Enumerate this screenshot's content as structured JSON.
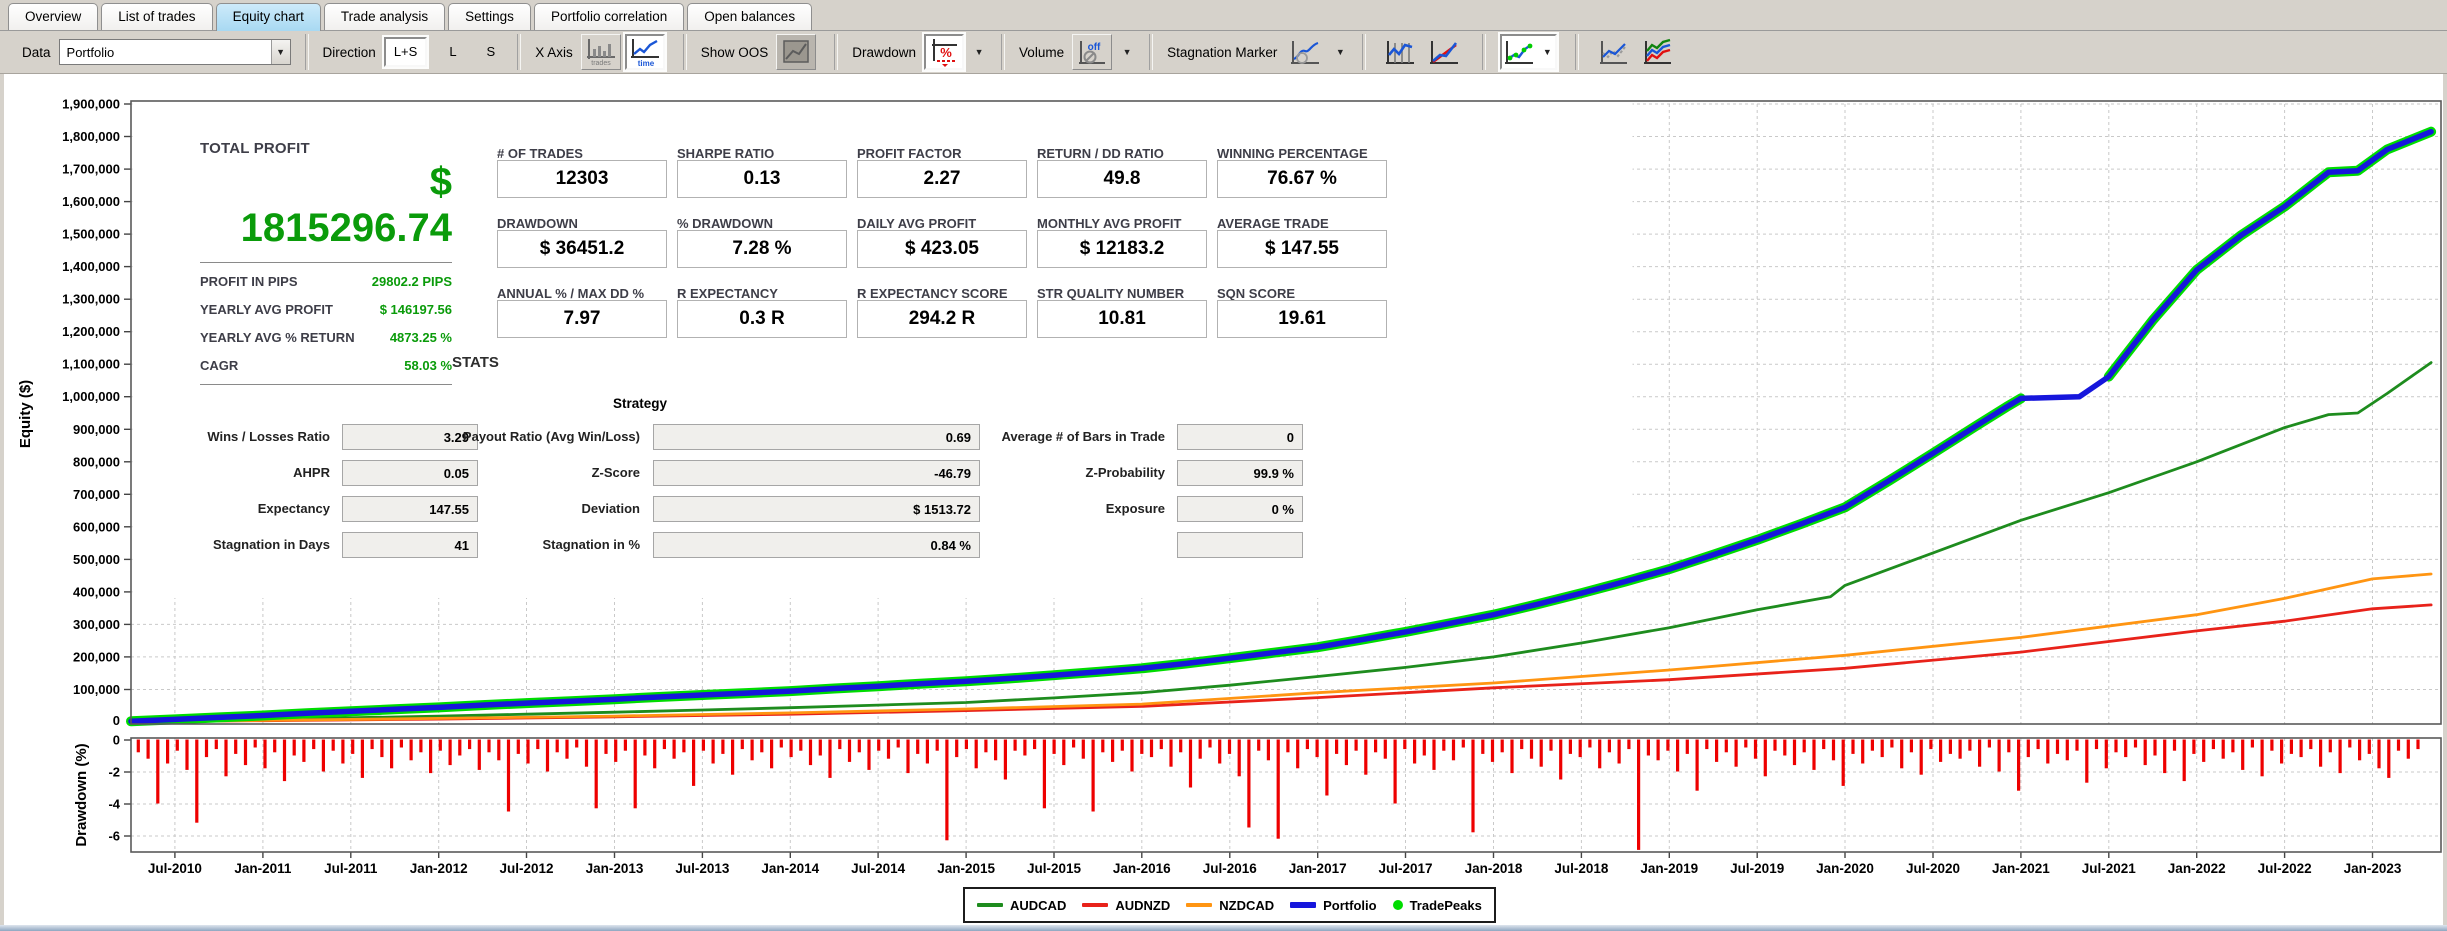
{
  "tabs": {
    "items": [
      "Overview",
      "List of trades",
      "Equity chart",
      "Trade analysis",
      "Settings",
      "Portfolio correlation",
      "Open balances"
    ],
    "active": "Equity chart"
  },
  "toolbar": {
    "data_label": "Data",
    "data_value": "Portfolio",
    "direction_label": "Direction",
    "direction_options": [
      "L+S",
      "L",
      "S"
    ],
    "direction_selected": "L+S",
    "xaxis_label": "X Axis",
    "xaxis_trades_caption": "trades",
    "xaxis_time_caption": "time",
    "show_oos_label": "Show OOS",
    "drawdown_label": "Drawdown",
    "drawdown_icon_glyph": "%",
    "volume_label": "Volume",
    "volume_state": "off",
    "stagnation_label": "Stagnation Marker",
    "caret": "▼"
  },
  "summary": {
    "title": "TOTAL PROFIT",
    "currency": "$",
    "value": "1815296.74",
    "rows": [
      {
        "label": "PROFIT IN PIPS",
        "value": "29802.2 PIPS"
      },
      {
        "label": "YEARLY AVG PROFIT",
        "value": "$ 146197.56"
      },
      {
        "label": "YEARLY AVG % RETURN",
        "value": "4873.25 %"
      },
      {
        "label": "CAGR",
        "value": "58.03 %"
      }
    ]
  },
  "stat_boxes": [
    [
      {
        "label": "# OF TRADES",
        "value": "12303"
      },
      {
        "label": "SHARPE RATIO",
        "value": "0.13"
      },
      {
        "label": "PROFIT FACTOR",
        "value": "2.27"
      },
      {
        "label": "RETURN / DD RATIO",
        "value": "49.8"
      },
      {
        "label": "WINNING PERCENTAGE",
        "value": "76.67 %"
      }
    ],
    [
      {
        "label": "DRAWDOWN",
        "value": "$ 36451.2"
      },
      {
        "label": "% DRAWDOWN",
        "value": "7.28 %"
      },
      {
        "label": "DAILY AVG PROFIT",
        "value": "$ 423.05"
      },
      {
        "label": "MONTHLY AVG PROFIT",
        "value": "$ 12183.2"
      },
      {
        "label": "AVERAGE TRADE",
        "value": "$ 147.55"
      }
    ],
    [
      {
        "label": "ANNUAL % / MAX DD %",
        "value": "7.97"
      },
      {
        "label": "R EXPECTANCY",
        "value": "0.3 R"
      },
      {
        "label": "R EXPECTANCY SCORE",
        "value": "294.2 R"
      },
      {
        "label": "STR QUALITY NUMBER",
        "value": "10.81"
      },
      {
        "label": "SQN SCORE",
        "value": "19.61"
      }
    ]
  ],
  "stats_heading": "STATS",
  "strategy": {
    "title": "Strategy",
    "cols": [
      {
        "rows": [
          {
            "label": "Wins / Losses Ratio",
            "value": "3.29"
          },
          {
            "label": "AHPR",
            "value": "0.05"
          },
          {
            "label": "Expectancy",
            "value": "147.55"
          },
          {
            "label": "Stagnation in Days",
            "value": "41"
          }
        ]
      },
      {
        "rows": [
          {
            "label": "Payout Ratio (Avg Win/Loss)",
            "value": "0.69"
          },
          {
            "label": "Z-Score",
            "value": "-46.79"
          },
          {
            "label": "Deviation",
            "value": "$ 1513.72"
          },
          {
            "label": "Stagnation in %",
            "value": "0.84 %"
          }
        ]
      },
      {
        "rows": [
          {
            "label": "Average # of Bars in Trade",
            "value": "0"
          },
          {
            "label": "Z-Probability",
            "value": "99.9 %"
          },
          {
            "label": "Exposure",
            "value": "0 %"
          },
          {
            "label": "",
            "value": ""
          }
        ]
      }
    ]
  },
  "legend": {
    "items": [
      {
        "label": "AUDCAD",
        "color": "#1e8c1e",
        "swatch": "line"
      },
      {
        "label": "AUDNZD",
        "color": "#e8221a",
        "swatch": "line"
      },
      {
        "label": "NZDCAD",
        "color": "#ff9512",
        "swatch": "line"
      },
      {
        "label": "Portfolio",
        "color": "#1616dc",
        "swatch": "line-thick"
      },
      {
        "label": "TradePeaks",
        "color": "#00dc00",
        "swatch": "dot"
      }
    ]
  },
  "chart_data": {
    "type": "line",
    "x_unit": "months since Apr-2010",
    "equity_axis": {
      "label": "Equity ($)",
      "min": 0,
      "max": 1900000,
      "step": 100000
    },
    "drawdown_axis": {
      "label": "Drawdown (%)",
      "ticks": [
        0,
        -2,
        -4,
        -6
      ]
    },
    "x_ticks": [
      {
        "t": 3,
        "label": "Jul-2010"
      },
      {
        "t": 9,
        "label": "Jan-2011"
      },
      {
        "t": 15,
        "label": "Jul-2011"
      },
      {
        "t": 21,
        "label": "Jan-2012"
      },
      {
        "t": 27,
        "label": "Jul-2012"
      },
      {
        "t": 33,
        "label": "Jan-2013"
      },
      {
        "t": 39,
        "label": "Jul-2013"
      },
      {
        "t": 45,
        "label": "Jan-2014"
      },
      {
        "t": 51,
        "label": "Jul-2014"
      },
      {
        "t": 57,
        "label": "Jan-2015"
      },
      {
        "t": 63,
        "label": "Jul-2015"
      },
      {
        "t": 69,
        "label": "Jan-2016"
      },
      {
        "t": 75,
        "label": "Jul-2016"
      },
      {
        "t": 81,
        "label": "Jan-2017"
      },
      {
        "t": 87,
        "label": "Jul-2017"
      },
      {
        "t": 93,
        "label": "Jan-2018"
      },
      {
        "t": 99,
        "label": "Jul-2018"
      },
      {
        "t": 105,
        "label": "Jan-2019"
      },
      {
        "t": 111,
        "label": "Jul-2019"
      },
      {
        "t": 117,
        "label": "Jan-2020"
      },
      {
        "t": 123,
        "label": "Jul-2020"
      },
      {
        "t": 129,
        "label": "Jan-2021"
      },
      {
        "t": 135,
        "label": "Jul-2021"
      },
      {
        "t": 141,
        "label": "Jan-2022"
      },
      {
        "t": 147,
        "label": "Jul-2022"
      },
      {
        "t": 153,
        "label": "Jan-2023"
      }
    ],
    "series": [
      {
        "name": "AUDCAD",
        "color": "#1e8c1e",
        "points": [
          [
            0,
            1
          ],
          [
            6,
            5
          ],
          [
            9,
            8
          ],
          [
            15,
            13
          ],
          [
            21,
            18
          ],
          [
            27,
            24
          ],
          [
            33,
            30
          ],
          [
            39,
            37
          ],
          [
            45,
            44
          ],
          [
            51,
            52
          ],
          [
            57,
            60
          ],
          [
            63,
            74
          ],
          [
            69,
            90
          ],
          [
            75,
            113
          ],
          [
            81,
            140
          ],
          [
            87,
            168
          ],
          [
            93,
            200
          ],
          [
            99,
            243
          ],
          [
            105,
            290
          ],
          [
            111,
            345
          ],
          [
            116,
            385
          ],
          [
            117,
            420
          ],
          [
            123,
            520
          ],
          [
            129,
            620
          ],
          [
            135,
            705
          ],
          [
            141,
            800
          ],
          [
            147,
            905
          ],
          [
            150,
            945
          ],
          [
            152,
            950
          ],
          [
            154,
            1010
          ],
          [
            157,
            1105
          ]
        ]
      },
      {
        "name": "AUDNZD",
        "color": "#e8221a",
        "points": [
          [
            0,
            1
          ],
          [
            9,
            4
          ],
          [
            21,
            9
          ],
          [
            33,
            16
          ],
          [
            45,
            24
          ],
          [
            57,
            35
          ],
          [
            69,
            48
          ],
          [
            81,
            75
          ],
          [
            93,
            105
          ],
          [
            105,
            130
          ],
          [
            117,
            165
          ],
          [
            129,
            215
          ],
          [
            141,
            280
          ],
          [
            147,
            310
          ],
          [
            153,
            348
          ],
          [
            157,
            360
          ]
        ]
      },
      {
        "name": "NZDCAD",
        "color": "#ff9512",
        "points": [
          [
            0,
            1
          ],
          [
            9,
            5
          ],
          [
            21,
            11
          ],
          [
            33,
            18
          ],
          [
            45,
            28
          ],
          [
            57,
            40
          ],
          [
            69,
            55
          ],
          [
            81,
            90
          ],
          [
            93,
            120
          ],
          [
            105,
            160
          ],
          [
            117,
            205
          ],
          [
            129,
            260
          ],
          [
            141,
            330
          ],
          [
            147,
            380
          ],
          [
            153,
            440
          ],
          [
            157,
            455
          ]
        ]
      },
      {
        "name": "Portfolio",
        "color": "#1616dc",
        "halo": "#00dc00",
        "halo_gaps": [
          [
            129,
            134
          ],
          [
            150,
            152
          ]
        ],
        "points": [
          [
            0,
            2
          ],
          [
            3,
            8
          ],
          [
            6,
            14
          ],
          [
            9,
            20
          ],
          [
            12,
            27
          ],
          [
            15,
            33
          ],
          [
            18,
            39
          ],
          [
            21,
            45
          ],
          [
            24,
            52
          ],
          [
            27,
            58
          ],
          [
            30,
            64
          ],
          [
            33,
            70
          ],
          [
            36,
            77
          ],
          [
            39,
            83
          ],
          [
            42,
            89
          ],
          [
            45,
            95
          ],
          [
            48,
            103
          ],
          [
            51,
            110
          ],
          [
            54,
            118
          ],
          [
            57,
            125
          ],
          [
            60,
            134
          ],
          [
            63,
            144
          ],
          [
            66,
            154
          ],
          [
            69,
            165
          ],
          [
            72,
            180
          ],
          [
            75,
            196
          ],
          [
            78,
            213
          ],
          [
            81,
            230
          ],
          [
            84,
            253
          ],
          [
            87,
            277
          ],
          [
            90,
            303
          ],
          [
            93,
            330
          ],
          [
            96,
            362
          ],
          [
            99,
            396
          ],
          [
            102,
            432
          ],
          [
            105,
            470
          ],
          [
            108,
            514
          ],
          [
            111,
            560
          ],
          [
            114,
            609
          ],
          [
            117,
            660
          ],
          [
            120,
            742
          ],
          [
            123,
            826
          ],
          [
            126,
            912
          ],
          [
            128,
            968
          ],
          [
            129,
            995
          ],
          [
            133,
            1000
          ],
          [
            135,
            1062
          ],
          [
            138,
            1235
          ],
          [
            141,
            1390
          ],
          [
            144,
            1495
          ],
          [
            147,
            1585
          ],
          [
            149,
            1655
          ],
          [
            150,
            1690
          ],
          [
            152,
            1695
          ],
          [
            154,
            1760
          ],
          [
            157,
            1815
          ]
        ]
      }
    ],
    "trade_peaks": {
      "name": "TradePeaks",
      "color": "#00dc00"
    },
    "drawdown_bars": {
      "color": "#ee0000",
      "t_start": 0.5,
      "t_step": 0.665,
      "depths": [
        0.8,
        1.2,
        4.0,
        1.5,
        0.7,
        1.9,
        5.2,
        1.1,
        0.6,
        2.3,
        0.9,
        1.6,
        0.5,
        1.8,
        0.8,
        2.6,
        1.0,
        1.4,
        0.6,
        2.0,
        0.7,
        1.5,
        0.9,
        2.4,
        0.6,
        1.1,
        1.8,
        0.5,
        1.3,
        0.8,
        2.1,
        0.7,
        1.6,
        1.0,
        0.6,
        1.9,
        0.8,
        1.3,
        4.5,
        0.9,
        1.5,
        0.6,
        2.0,
        0.8,
        1.2,
        0.5,
        1.7,
        4.3,
        0.9,
        1.4,
        0.7,
        4.3,
        1.0,
        1.8,
        0.6,
        1.2,
        0.8,
        2.9,
        0.7,
        1.5,
        0.9,
        2.2,
        0.6,
        1.3,
        0.8,
        1.8,
        0.5,
        1.1,
        0.7,
        1.6,
        1.0,
        2.4,
        0.6,
        1.4,
        0.8,
        1.9,
        0.7,
        1.2,
        0.5,
        2.1,
        0.9,
        1.5,
        0.7,
        6.3,
        1.1,
        0.6,
        1.8,
        0.8,
        1.3,
        2.5,
        0.7,
        1.0,
        0.6,
        4.3,
        0.9,
        1.6,
        0.5,
        1.2,
        4.5,
        0.8,
        1.4,
        0.7,
        2.0,
        0.9,
        1.1,
        0.6,
        1.7,
        0.8,
        3.0,
        1.2,
        0.5,
        1.5,
        0.9,
        2.3,
        5.5,
        0.7,
        1.3,
        6.2,
        0.8,
        1.8,
        0.6,
        1.1,
        3.5,
        0.9,
        1.6,
        0.7,
        2.2,
        0.8,
        1.2,
        4.0,
        0.6,
        1.5,
        1.0,
        1.9,
        0.7,
        1.3,
        0.5,
        5.8,
        0.9,
        1.4,
        0.8,
        2.1,
        0.6,
        1.2,
        1.7,
        0.7,
        2.5,
        0.9,
        1.1,
        0.5,
        1.8,
        0.8,
        1.5,
        0.6,
        6.9,
        1.0,
        1.3,
        0.7,
        2.0,
        0.9,
        3.2,
        0.6,
        1.4,
        0.8,
        1.7,
        0.5,
        1.2,
        2.3,
        0.7,
        1.0,
        1.6,
        0.8,
        1.9,
        0.6,
        1.3,
        2.9,
        0.9,
        1.5,
        0.7,
        1.1,
        0.5,
        1.8,
        0.8,
        2.2,
        0.6,
        1.4,
        0.9,
        1.2,
        0.7,
        1.7,
        0.5,
        2.0,
        0.8,
        3.2,
        1.1,
        0.6,
        1.5,
        0.9,
        1.3,
        0.7,
        2.7,
        0.6,
        1.8,
        0.8,
        1.1,
        0.5,
        1.6,
        1.0,
        2.1,
        0.7,
        2.6,
        0.9,
        1.4,
        0.6,
        1.2,
        0.8,
        1.9,
        0.5,
        2.3,
        0.7,
        1.5,
        0.9,
        1.1,
        0.6,
        1.7,
        0.8,
        2.1,
        0.5,
        1.3,
        0.9,
        1.8,
        2.4,
        0.7,
        1.2,
        0.6
      ]
    }
  }
}
